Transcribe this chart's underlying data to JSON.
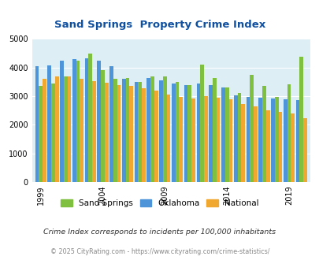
{
  "title": "Sand Springs  Property Crime Index",
  "years": [
    1999,
    2000,
    2001,
    2002,
    2003,
    2004,
    2005,
    2006,
    2007,
    2008,
    2009,
    2010,
    2011,
    2012,
    2013,
    2014,
    2015,
    2016,
    2017,
    2018,
    2019,
    2020
  ],
  "sand_springs": [
    3350,
    3450,
    3700,
    4250,
    4500,
    3900,
    3600,
    3650,
    3500,
    3700,
    3700,
    3500,
    3380,
    4100,
    3650,
    3300,
    3100,
    3750,
    3350,
    2980,
    3420,
    4380
  ],
  "oklahoma": [
    4060,
    4080,
    4250,
    4300,
    4320,
    4250,
    4050,
    3600,
    3500,
    3650,
    3550,
    3430,
    3400,
    3450,
    3400,
    3300,
    3020,
    2970,
    2960,
    2920,
    2880,
    2860
  ],
  "national": [
    3600,
    3680,
    3680,
    3620,
    3530,
    3470,
    3380,
    3360,
    3280,
    3190,
    3060,
    2980,
    2930,
    3010,
    2960,
    2880,
    2740,
    2640,
    2510,
    2450,
    2390,
    2220
  ],
  "sand_springs_color": "#80c040",
  "oklahoma_color": "#4d94d9",
  "national_color": "#f0a830",
  "bg_color": "#ddeef5",
  "title_color": "#1050a0",
  "ylim": [
    0,
    5000
  ],
  "yticks": [
    0,
    1000,
    2000,
    3000,
    4000,
    5000
  ],
  "xlabel_ticks": [
    1999,
    2004,
    2009,
    2014,
    2019
  ],
  "footnote1": "Crime Index corresponds to incidents per 100,000 inhabitants",
  "footnote2": "© 2025 CityRating.com - https://www.cityrating.com/crime-statistics/",
  "legend_labels": [
    "Sand Springs",
    "Oklahoma",
    "National"
  ]
}
